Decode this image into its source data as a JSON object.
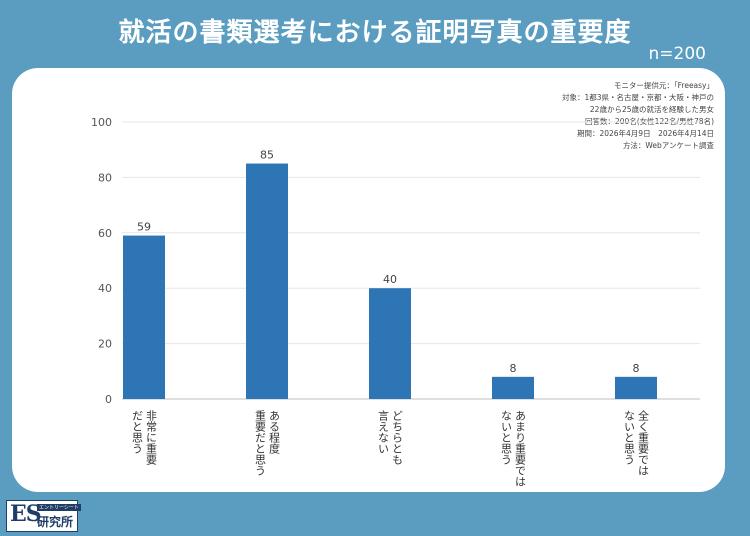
{
  "header": {
    "title": "就活の書類選考における証明写真の重要度",
    "sample": "n=200"
  },
  "notes": [
    "モニター提供元：「Freeasy」",
    "対象：1都3県・名古屋・京都・大阪・神戸の",
    "22歳から25歳の就活を経験した男女",
    "回答数：200名(女性122名/男性78名)",
    "期間：2026年4月9日　2026年4月14日",
    "方法：Webアンケート調査"
  ],
  "colors": {
    "background": "#5b9dc0",
    "bar": "#2e75b6",
    "card": "#ffffff"
  },
  "logo": {
    "mark": "ES",
    "tagline": "エントリーシート",
    "name": "研究所"
  },
  "chart_data": {
    "type": "bar",
    "categories": [
      "非常に重要だと思う",
      "ある程度重要だと思う",
      "どちらとも言えない",
      "あまり重要ではないと思う",
      "全く重要ではないと思う"
    ],
    "category_lines": [
      [
        "非常に重要",
        "だと思う"
      ],
      [
        "ある程度",
        "重要だと思う"
      ],
      [
        "どちらとも",
        "言えない"
      ],
      [
        "あまり重要では",
        "ないと思う"
      ],
      [
        "全く重要では",
        "ないと思う"
      ]
    ],
    "values": [
      59,
      85,
      40,
      8,
      8
    ],
    "ylim": [
      0,
      100
    ],
    "yticks": [
      0,
      20,
      40,
      60,
      80,
      100
    ],
    "grid": true,
    "legend": "none"
  }
}
